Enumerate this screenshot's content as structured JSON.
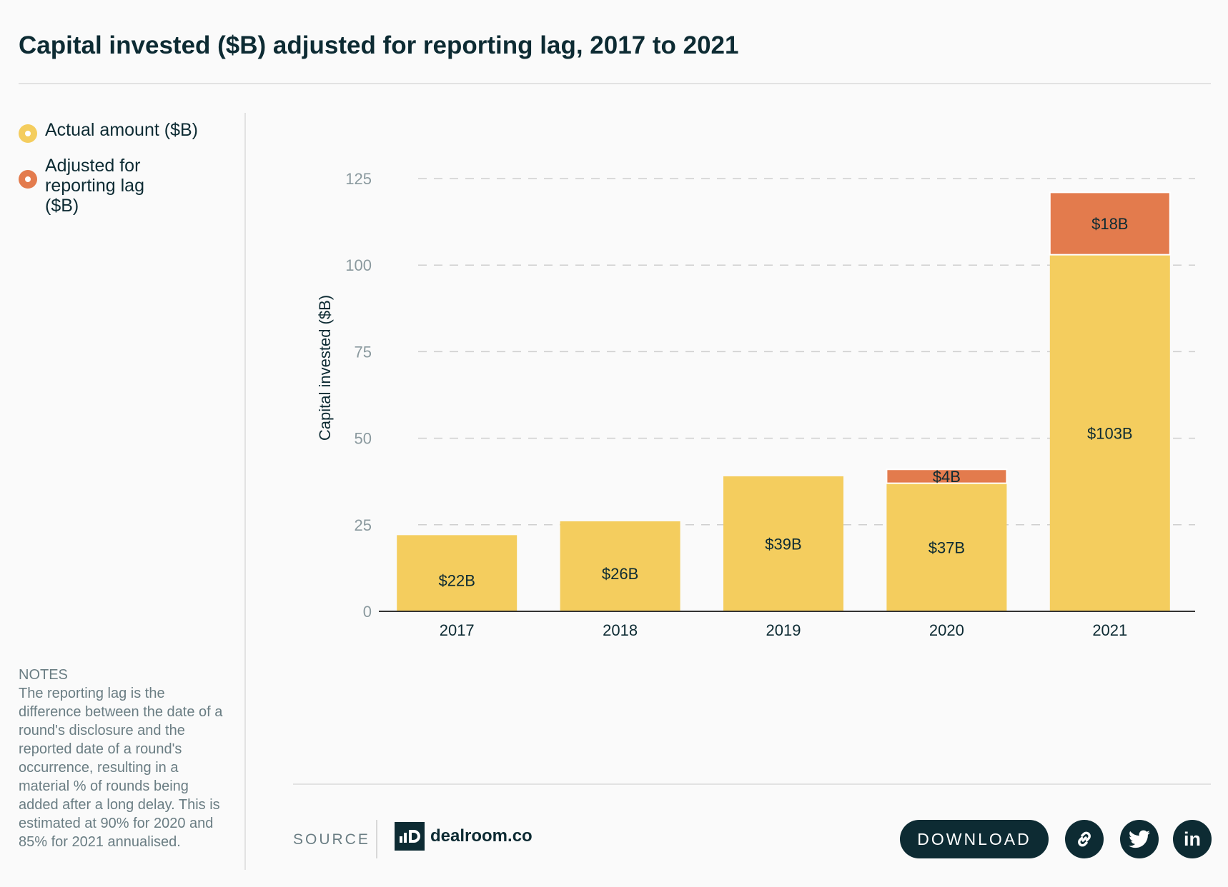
{
  "title": "Capital invested ($B) adjusted for reporting lag, 2017 to 2021",
  "legend": [
    {
      "label": "Actual amount ($B)",
      "color": "#f4cd5e"
    },
    {
      "label": "Adjusted for reporting lag ($B)",
      "color": "#e37b4d"
    }
  ],
  "notes": {
    "heading": "NOTES",
    "text": "The reporting lag is the difference between the date of a round's disclosure and the reported date of a round's occurrence, resulting in a material % of rounds being added after a long delay. This is estimated at 90% for 2020 and 85% for 2021 annualised."
  },
  "footer": {
    "source_label": "SOURCE",
    "logo_text": "dealroom.co",
    "download_label": "DOWNLOAD",
    "share_icons": [
      "link-icon",
      "twitter-icon",
      "linkedin-icon"
    ],
    "linkedin_glyph": "in"
  },
  "chart_data": {
    "type": "bar",
    "stacked": true,
    "categories": [
      "2017",
      "2018",
      "2019",
      "2020",
      "2021"
    ],
    "series": [
      {
        "name": "Actual amount ($B)",
        "color": "#f4cd5e",
        "values": [
          22,
          26,
          39,
          37,
          103
        ],
        "labels": [
          "$22B",
          "$26B",
          "$39B",
          "$37B",
          "$103B"
        ]
      },
      {
        "name": "Adjusted for reporting lag ($B)",
        "color": "#e37b4d",
        "values": [
          0,
          0,
          0,
          4,
          18
        ],
        "labels": [
          "",
          "",
          "",
          "$4B",
          "$18B"
        ]
      }
    ],
    "ylabel": "Capital invested ($B)",
    "xlabel": "",
    "ylim": [
      0,
      125
    ],
    "yticks": [
      0,
      25,
      50,
      75,
      100,
      125
    ],
    "grid": true,
    "legend_position": "left"
  }
}
